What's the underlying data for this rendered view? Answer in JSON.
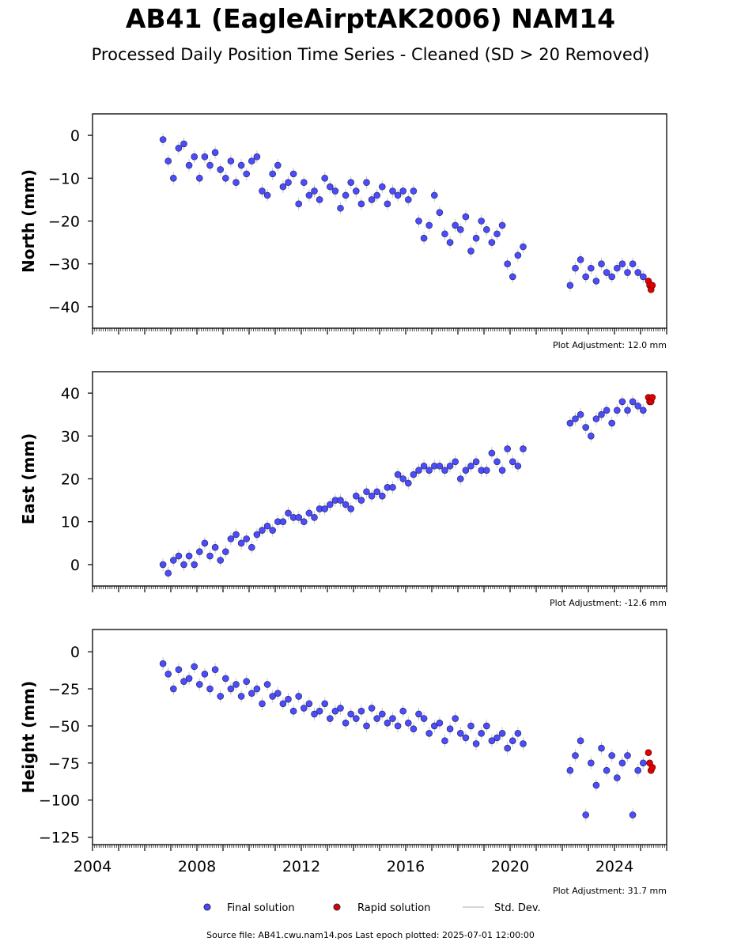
{
  "title": "AB41 (EagleAirptAK2006) NAM14",
  "subtitle": "Processed Daily Position Time Series - Cleaned (SD > 20 Removed)",
  "footer": "Source file: AB41.cwu.nam14.pos  Last epoch plotted: 2025-07-01 12:00:00",
  "colors": {
    "final": "#4b4bff",
    "rapid": "#e00000",
    "std_dev": "#c8c8c8",
    "edge": "#222244"
  },
  "legend": {
    "final": "Final solution",
    "rapid": "Rapid solution",
    "std": "Std. Dev."
  },
  "chart_data": [
    {
      "type": "scatter",
      "ylabel": "North (mm)",
      "ylim": [
        -45,
        5
      ],
      "xlim": [
        2004,
        2026
      ],
      "yticks": [
        0,
        -10,
        -20,
        -30,
        -40
      ],
      "adjustment": "Plot Adjustment: 12.0 mm",
      "final": {
        "x": [
          2006.7,
          2006.9,
          2007.1,
          2007.3,
          2007.5,
          2007.7,
          2007.9,
          2008.1,
          2008.3,
          2008.5,
          2008.7,
          2008.9,
          2009.1,
          2009.3,
          2009.5,
          2009.7,
          2009.9,
          2010.1,
          2010.3,
          2010.5,
          2010.7,
          2010.9,
          2011.1,
          2011.3,
          2011.5,
          2011.7,
          2011.9,
          2012.1,
          2012.3,
          2012.5,
          2012.7,
          2012.9,
          2013.1,
          2013.3,
          2013.5,
          2013.7,
          2013.9,
          2014.1,
          2014.3,
          2014.5,
          2014.7,
          2014.9,
          2015.1,
          2015.3,
          2015.5,
          2015.7,
          2015.9,
          2016.1,
          2016.3,
          2016.5,
          2016.7,
          2016.9,
          2017.1,
          2017.3,
          2017.5,
          2017.7,
          2017.9,
          2018.1,
          2018.3,
          2018.5,
          2018.7,
          2018.9,
          2019.1,
          2019.3,
          2019.5,
          2019.7,
          2019.9,
          2020.1,
          2020.3,
          2020.5,
          2022.3,
          2022.5,
          2022.7,
          2022.9,
          2023.1,
          2023.3,
          2023.5,
          2023.7,
          2023.9,
          2024.1,
          2024.3,
          2024.5,
          2024.7,
          2024.9,
          2025.1
        ],
        "y": [
          -1,
          -6,
          -10,
          -3,
          -2,
          -7,
          -5,
          -10,
          -5,
          -7,
          -4,
          -8,
          -10,
          -6,
          -11,
          -7,
          -9,
          -6,
          -5,
          -13,
          -14,
          -9,
          -7,
          -12,
          -11,
          -9,
          -16,
          -11,
          -14,
          -13,
          -15,
          -10,
          -12,
          -13,
          -17,
          -14,
          -11,
          -13,
          -16,
          -11,
          -15,
          -14,
          -12,
          -16,
          -13,
          -14,
          -13,
          -15,
          -13,
          -20,
          -24,
          -21,
          -14,
          -18,
          -23,
          -25,
          -21,
          -22,
          -19,
          -27,
          -24,
          -20,
          -22,
          -25,
          -23,
          -21,
          -30,
          -33,
          -28,
          -26,
          -35,
          -31,
          -29,
          -33,
          -31,
          -34,
          -30,
          -32,
          -33,
          -31,
          -30,
          -32,
          -30,
          -32,
          -33
        ]
      },
      "rapid": {
        "x": [
          2025.3,
          2025.35,
          2025.4,
          2025.45
        ],
        "y": [
          -34,
          -35,
          -36,
          -35
        ]
      }
    },
    {
      "type": "scatter",
      "ylabel": "East (mm)",
      "ylim": [
        -5,
        45
      ],
      "xlim": [
        2004,
        2026
      ],
      "yticks": [
        0,
        10,
        20,
        30,
        40
      ],
      "adjustment": "Plot Adjustment: -12.6 mm",
      "final": {
        "x": [
          2006.7,
          2006.9,
          2007.1,
          2007.3,
          2007.5,
          2007.7,
          2007.9,
          2008.1,
          2008.3,
          2008.5,
          2008.7,
          2008.9,
          2009.1,
          2009.3,
          2009.5,
          2009.7,
          2009.9,
          2010.1,
          2010.3,
          2010.5,
          2010.7,
          2010.9,
          2011.1,
          2011.3,
          2011.5,
          2011.7,
          2011.9,
          2012.1,
          2012.3,
          2012.5,
          2012.7,
          2012.9,
          2013.1,
          2013.3,
          2013.5,
          2013.7,
          2013.9,
          2014.1,
          2014.3,
          2014.5,
          2014.7,
          2014.9,
          2015.1,
          2015.3,
          2015.5,
          2015.7,
          2015.9,
          2016.1,
          2016.3,
          2016.5,
          2016.7,
          2016.9,
          2017.1,
          2017.3,
          2017.5,
          2017.7,
          2017.9,
          2018.1,
          2018.3,
          2018.5,
          2018.7,
          2018.9,
          2019.1,
          2019.3,
          2019.5,
          2019.7,
          2019.9,
          2020.1,
          2020.3,
          2020.5,
          2022.3,
          2022.5,
          2022.7,
          2022.9,
          2023.1,
          2023.3,
          2023.5,
          2023.7,
          2023.9,
          2024.1,
          2024.3,
          2024.5,
          2024.7,
          2024.9,
          2025.1
        ],
        "y": [
          0,
          -2,
          1,
          2,
          0,
          2,
          0,
          3,
          5,
          2,
          4,
          1,
          3,
          6,
          7,
          5,
          6,
          4,
          7,
          8,
          9,
          8,
          10,
          10,
          12,
          11,
          11,
          10,
          12,
          11,
          13,
          13,
          14,
          15,
          15,
          14,
          13,
          16,
          15,
          17,
          16,
          17,
          16,
          18,
          18,
          21,
          20,
          19,
          21,
          22,
          23,
          22,
          23,
          23,
          22,
          23,
          24,
          20,
          22,
          23,
          24,
          22,
          22,
          26,
          24,
          22,
          27,
          24,
          23,
          27,
          33,
          34,
          35,
          32,
          30,
          34,
          35,
          36,
          33,
          36,
          38,
          36,
          38,
          37,
          36
        ]
      },
      "rapid": {
        "x": [
          2025.3,
          2025.35,
          2025.4,
          2025.45
        ],
        "y": [
          39,
          38,
          38,
          39
        ]
      }
    },
    {
      "type": "scatter",
      "ylabel": "Height (mm)",
      "ylim": [
        -130,
        15
      ],
      "xlim": [
        2004,
        2026
      ],
      "yticks": [
        0,
        -25,
        -50,
        -75,
        -100,
        -125
      ],
      "xticks": [
        2004,
        2008,
        2012,
        2016,
        2020,
        2024
      ],
      "adjustment": "Plot Adjustment: 31.7 mm",
      "final": {
        "x": [
          2006.7,
          2006.9,
          2007.1,
          2007.3,
          2007.5,
          2007.7,
          2007.9,
          2008.1,
          2008.3,
          2008.5,
          2008.7,
          2008.9,
          2009.1,
          2009.3,
          2009.5,
          2009.7,
          2009.9,
          2010.1,
          2010.3,
          2010.5,
          2010.7,
          2010.9,
          2011.1,
          2011.3,
          2011.5,
          2011.7,
          2011.9,
          2012.1,
          2012.3,
          2012.5,
          2012.7,
          2012.9,
          2013.1,
          2013.3,
          2013.5,
          2013.7,
          2013.9,
          2014.1,
          2014.3,
          2014.5,
          2014.7,
          2014.9,
          2015.1,
          2015.3,
          2015.5,
          2015.7,
          2015.9,
          2016.1,
          2016.3,
          2016.5,
          2016.7,
          2016.9,
          2017.1,
          2017.3,
          2017.5,
          2017.7,
          2017.9,
          2018.1,
          2018.3,
          2018.5,
          2018.7,
          2018.9,
          2019.1,
          2019.3,
          2019.5,
          2019.7,
          2019.9,
          2020.1,
          2020.3,
          2020.5,
          2022.3,
          2022.5,
          2022.7,
          2022.9,
          2023.1,
          2023.3,
          2023.5,
          2023.7,
          2023.9,
          2024.1,
          2024.3,
          2024.5,
          2024.7,
          2024.9,
          2025.1
        ],
        "y": [
          -8,
          -15,
          -25,
          -12,
          -20,
          -18,
          -10,
          -22,
          -15,
          -25,
          -12,
          -30,
          -18,
          -25,
          -22,
          -30,
          -20,
          -28,
          -25,
          -35,
          -22,
          -30,
          -28,
          -35,
          -32,
          -40,
          -30,
          -38,
          -35,
          -42,
          -40,
          -35,
          -45,
          -40,
          -38,
          -48,
          -42,
          -45,
          -40,
          -50,
          -38,
          -45,
          -42,
          -48,
          -45,
          -50,
          -40,
          -48,
          -52,
          -42,
          -45,
          -55,
          -50,
          -48,
          -60,
          -52,
          -45,
          -55,
          -58,
          -50,
          -62,
          -55,
          -50,
          -60,
          -58,
          -55,
          -65,
          -60,
          -55,
          -62,
          -80,
          -70,
          -60,
          -110,
          -75,
          -90,
          -65,
          -80,
          -70,
          -85,
          -75,
          -70,
          -110,
          -80,
          -75
        ]
      },
      "rapid": {
        "x": [
          2025.3,
          2025.35,
          2025.4,
          2025.45
        ],
        "y": [
          -68,
          -75,
          -80,
          -78
        ]
      }
    }
  ]
}
